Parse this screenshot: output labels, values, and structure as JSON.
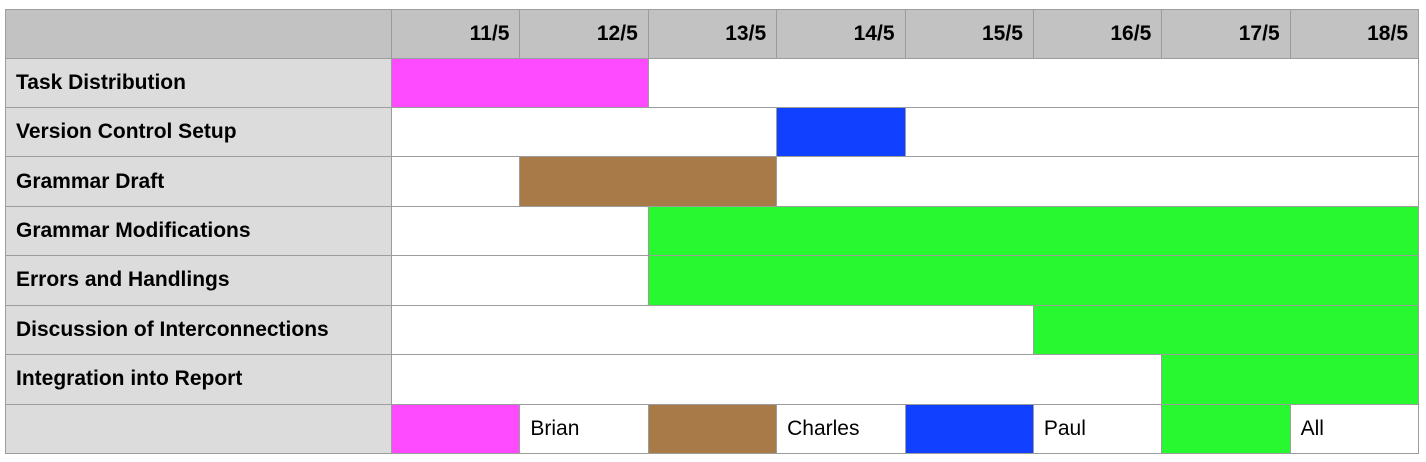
{
  "chart_data": {
    "type": "gantt",
    "dates": [
      "11/5",
      "12/5",
      "13/5",
      "14/5",
      "15/5",
      "16/5",
      "17/5",
      "18/5"
    ],
    "tasks": [
      {
        "name": "Task Distribution",
        "start": "11/5",
        "end": "12/5",
        "assignee": "Brian"
      },
      {
        "name": "Version Control Setup",
        "start": "14/5",
        "end": "14/5",
        "assignee": "Paul"
      },
      {
        "name": "Grammar Draft",
        "start": "12/5",
        "end": "13/5",
        "assignee": "Charles"
      },
      {
        "name": "Grammar Modifications",
        "start": "13/5",
        "end": "18/5",
        "assignee": "All"
      },
      {
        "name": "Errors and Handlings",
        "start": "13/5",
        "end": "18/5",
        "assignee": "All"
      },
      {
        "name": "Discussion of Interconnections",
        "start": "16/5",
        "end": "18/5",
        "assignee": "All"
      },
      {
        "name": "Integration into Report",
        "start": "17/5",
        "end": "18/5",
        "assignee": "All"
      }
    ],
    "legend": [
      {
        "name": "Brian",
        "color": "#ff4bff"
      },
      {
        "name": "Charles",
        "color": "#a87a48"
      },
      {
        "name": "Paul",
        "color": "#1140ff"
      },
      {
        "name": "All",
        "color": "#28f82f"
      }
    ]
  }
}
